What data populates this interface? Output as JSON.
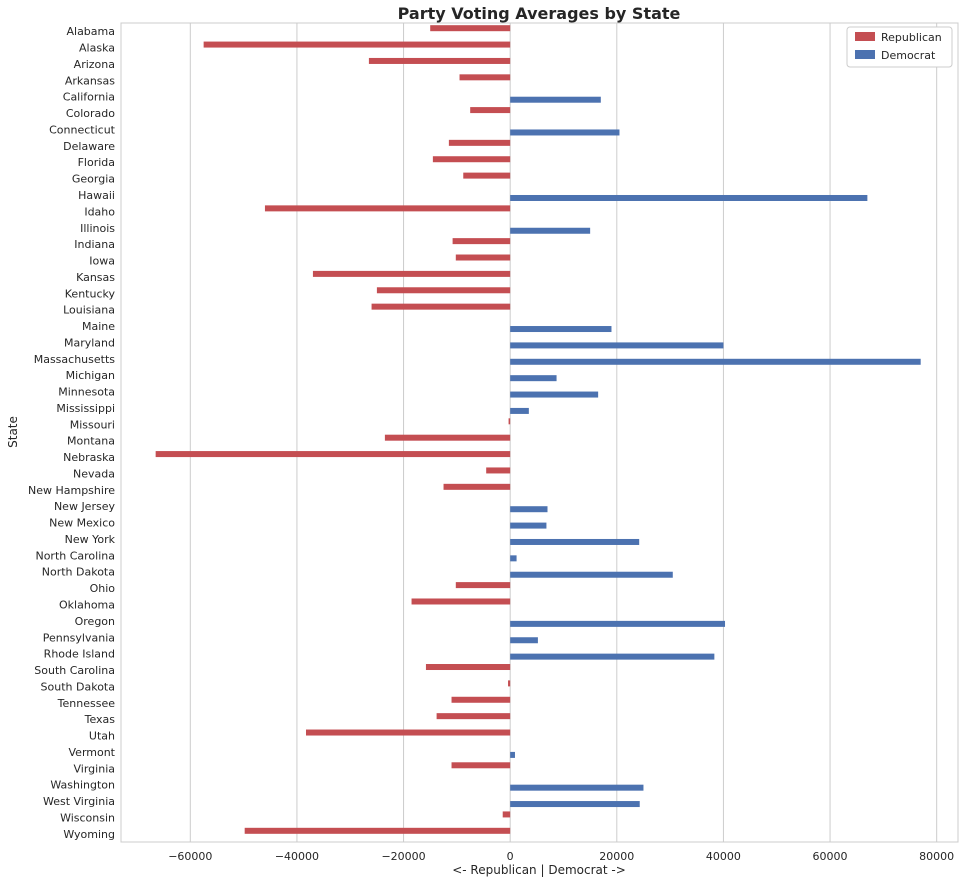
{
  "chart_data": {
    "type": "bar",
    "orientation": "horizontal",
    "title": "Party Voting Averages by State",
    "xlabel": "<- Republican | Democrat ->",
    "ylabel": "State",
    "xlim": [
      -73000,
      84000
    ],
    "xticks": [
      -60000,
      -40000,
      -20000,
      0,
      20000,
      40000,
      60000,
      80000
    ],
    "xtick_labels": [
      "−60000",
      "−40000",
      "−20000",
      "0",
      "20000",
      "40000",
      "60000",
      "80000"
    ],
    "grid": "vertical",
    "legend_position": "top-right",
    "categories": [
      "Alabama",
      "Alaska",
      "Arizona",
      "Arkansas",
      "California",
      "Colorado",
      "Connecticut",
      "Delaware",
      "Florida",
      "Georgia",
      "Hawaii",
      "Idaho",
      "Illinois",
      "Indiana",
      "Iowa",
      "Kansas",
      "Kentucky",
      "Louisiana",
      "Maine",
      "Maryland",
      "Massachusetts",
      "Michigan",
      "Minnesota",
      "Mississippi",
      "Missouri",
      "Montana",
      "Nebraska",
      "Nevada",
      "New Hampshire",
      "New Jersey",
      "New Mexico",
      "New York",
      "North Carolina",
      "North Dakota",
      "Ohio",
      "Oklahoma",
      "Oregon",
      "Pennsylvania",
      "Rhode Island",
      "South Carolina",
      "South Dakota",
      "Tennessee",
      "Texas",
      "Utah",
      "Vermont",
      "Virginia",
      "Washington",
      "West Virginia",
      "Wisconsin",
      "Wyoming"
    ],
    "values": [
      -15000,
      -57500,
      -26500,
      -9500,
      17000,
      -7500,
      20500,
      -11500,
      -14500,
      -8800,
      67000,
      -46000,
      15000,
      -10800,
      -10200,
      -37000,
      -25000,
      -26000,
      19000,
      40000,
      77000,
      8700,
      16500,
      3500,
      -300,
      -23500,
      -66500,
      -4500,
      -12500,
      7000,
      6800,
      24200,
      1200,
      30500,
      -10200,
      -18500,
      40300,
      5200,
      38300,
      -15800,
      -400,
      -11000,
      -13800,
      -38300,
      900,
      -11000,
      25000,
      24300,
      -1400,
      -49800
    ],
    "series": [
      {
        "name": "Republican",
        "color": "#c44e52",
        "rule": "value < 0"
      },
      {
        "name": "Democrat",
        "color": "#4c72b0",
        "rule": "value > 0"
      }
    ]
  }
}
